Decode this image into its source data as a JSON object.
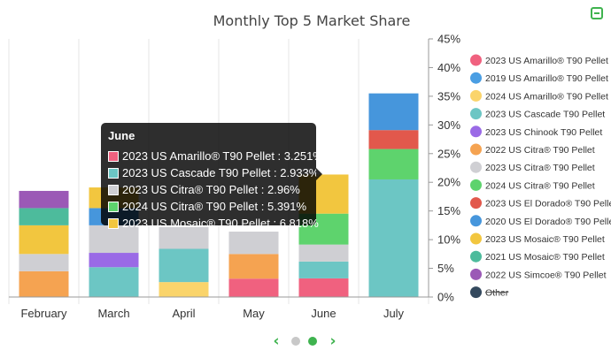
{
  "chart_data": {
    "type": "bar",
    "stacked": true,
    "title": "Monthly Top 5 Market Share",
    "categories": [
      "February",
      "March",
      "April",
      "May",
      "June",
      "July"
    ],
    "y_ticks": [
      "0%",
      "5%",
      "10%",
      "15%",
      "20%",
      "25%",
      "30%",
      "35%",
      "40%",
      "45%"
    ],
    "ylim": [
      0,
      45
    ],
    "axis_position": "right",
    "legend_position": "right",
    "series": [
      {
        "name": "2023 US Amarillo® T90 Pellet",
        "color": "#f0617f",
        "values": [
          0,
          0,
          0,
          3.2,
          3.251,
          0
        ]
      },
      {
        "name": "2019 US Amarillo® T90 Pellet",
        "color": "#4a9ee3",
        "values": [
          0,
          0,
          0,
          0,
          0,
          0
        ]
      },
      {
        "name": "2024 US Amarillo® T90 Pellet",
        "color": "#fad46b",
        "values": [
          0,
          0,
          2.6,
          0,
          0,
          0
        ]
      },
      {
        "name": "2023 US Cascade T90 Pellet",
        "color": "#6cc6c4",
        "values": [
          0,
          5.2,
          5.8,
          0,
          2.933,
          20.5
        ]
      },
      {
        "name": "2023 US Chinook T90 Pellet",
        "color": "#9a6ae6",
        "values": [
          0,
          2.5,
          0,
          0,
          0,
          0
        ]
      },
      {
        "name": "2022 US Citra® T90 Pellet",
        "color": "#f5a351",
        "values": [
          4.5,
          0,
          0,
          4.3,
          0,
          0
        ]
      },
      {
        "name": "2023 US Citra® T90 Pellet",
        "color": "#cfcfd3",
        "values": [
          3.0,
          4.8,
          3.8,
          3.9,
          2.96,
          0
        ]
      },
      {
        "name": "2024 US Citra® T90 Pellet",
        "color": "#5ed36d",
        "values": [
          0,
          0,
          0,
          0,
          5.391,
          5.3
        ]
      },
      {
        "name": "2023 US El Dorado® T90 Pellet",
        "color": "#e2584c",
        "values": [
          0,
          0,
          0,
          0,
          0,
          3.3
        ]
      },
      {
        "name": "2020 US El Dorado® T90 Pellet",
        "color": "#4696dc",
        "values": [
          0,
          3.0,
          0,
          0,
          0,
          6.4
        ]
      },
      {
        "name": "2023 US Mosaic® T90 Pellet",
        "color": "#f2c63f",
        "values": [
          5.0,
          3.6,
          0,
          0,
          6.818,
          0
        ]
      },
      {
        "name": "2021 US Mosaic® T90 Pellet",
        "color": "#4dbb9c",
        "values": [
          3.0,
          0,
          0,
          0,
          0,
          0
        ]
      },
      {
        "name": "2022 US Simcoe® T90 Pellet",
        "color": "#9b59b6",
        "values": [
          3.0,
          0,
          0,
          0,
          0,
          0
        ]
      },
      {
        "name": "Other",
        "color": "#34495e",
        "values": [
          0,
          0,
          0,
          0,
          0,
          0
        ],
        "hidden": true
      }
    ]
  },
  "tooltip": {
    "title": "June",
    "rows": [
      {
        "label": "2023 US Amarillo® T90 Pellet : 3.251%",
        "color": "#f0617f"
      },
      {
        "label": "2023 US Cascade T90 Pellet : 2.933%",
        "color": "#6cc6c4"
      },
      {
        "label": "2023 US Citra® T90 Pellet : 2.96%",
        "color": "#cfcfd3"
      },
      {
        "label": "2024 US Citra® T90 Pellet : 5.391%",
        "color": "#5ed36d"
      },
      {
        "label": "2023 US Mosaic® T90 Pellet : 6.818%",
        "color": "#f2c63f"
      }
    ]
  },
  "pager": {
    "prev_icon": "chevron-left-icon",
    "next_icon": "chevron-right-icon",
    "pages": 2,
    "active": 1,
    "prev_glyph": "‹",
    "next_glyph": "›"
  },
  "colors": {
    "accent": "#3fb34f",
    "dot_inactive": "#c8c8c8"
  }
}
